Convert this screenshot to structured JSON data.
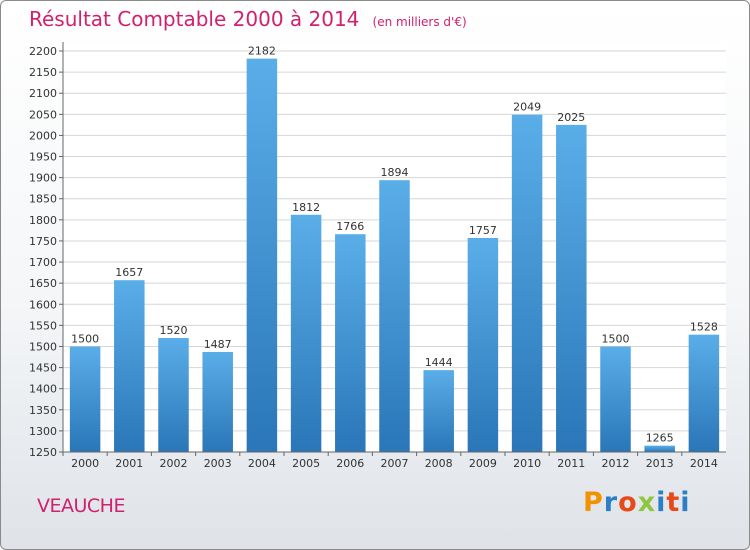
{
  "title": {
    "main": "Résultat Comptable 2000 à 2014",
    "sub": "(en milliers d'€)"
  },
  "city": "VEAUCHE",
  "brand": {
    "letters": [
      "P",
      "r",
      "o",
      "x",
      "i",
      "t",
      "i"
    ],
    "colors": [
      "#f39200",
      "#2a7fc6",
      "#e64a19",
      "#8dc63f",
      "#2a7fc6",
      "#e64a19",
      "#2a7fc6"
    ]
  },
  "chart_data": {
    "type": "bar",
    "title": "Résultat Comptable 2000 à 2014",
    "subtitle": "(en milliers d'€)",
    "categories": [
      "2000",
      "2001",
      "2002",
      "2003",
      "2004",
      "2005",
      "2006",
      "2007",
      "2008",
      "2009",
      "2010",
      "2011",
      "2012",
      "2013",
      "2014"
    ],
    "values": [
      1500,
      1657,
      1520,
      1487,
      2182,
      1812,
      1766,
      1894,
      1444,
      1757,
      2049,
      2025,
      1500,
      1265,
      1528
    ],
    "data_labels": [
      "1500",
      "1657",
      "1520",
      "1487",
      "2182",
      "1812",
      "1766",
      "1894",
      "1444",
      "1757",
      "2049",
      "2025",
      "1500",
      "1265",
      "1528"
    ],
    "yticks": [
      "1250",
      "1300",
      "1350",
      "1400",
      "1450",
      "1500",
      "1550",
      "1600",
      "1650",
      "1700",
      "1750",
      "1800",
      "1850",
      "1900",
      "1950",
      "2000",
      "2050",
      "2100",
      "2150",
      "2200"
    ],
    "ylim": [
      1250,
      2200
    ],
    "xlabel": "",
    "ylabel": "",
    "grid": true,
    "bar_color_top": "#5aaee8",
    "bar_color_bottom": "#2a76b8"
  }
}
